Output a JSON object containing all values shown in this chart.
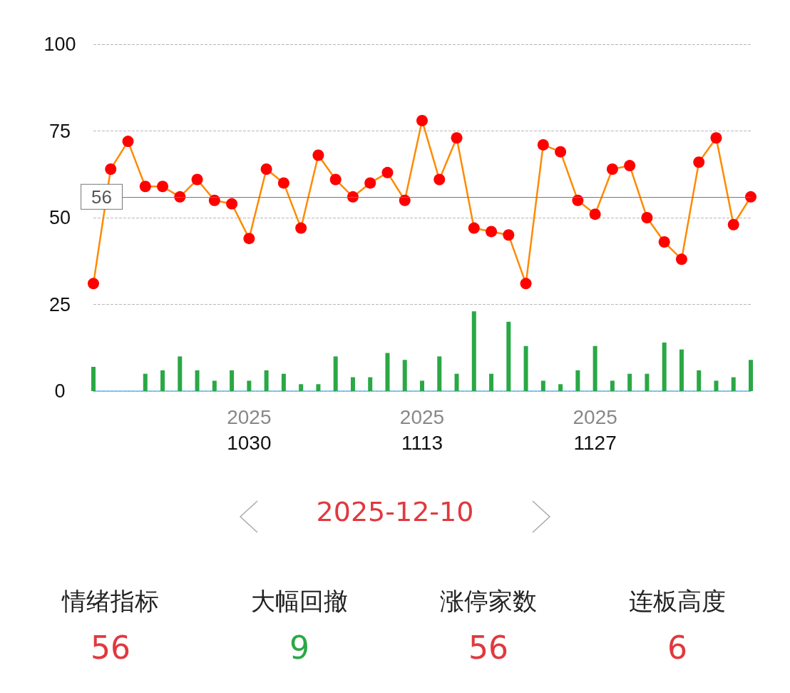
{
  "chart_data": [
    {
      "type": "line",
      "categories": [
        null,
        null,
        null,
        null,
        null,
        null,
        null,
        null,
        null,
        "2025\n1030",
        null,
        null,
        null,
        null,
        null,
        null,
        null,
        null,
        null,
        "2025\n1113",
        null,
        null,
        null,
        null,
        null,
        null,
        null,
        null,
        null,
        "2025\n1127",
        null,
        null,
        null,
        null,
        null,
        null,
        null,
        null,
        null
      ],
      "series": [
        {
          "type": "bar",
          "color": "#2aa845",
          "values": [
            7,
            0,
            0,
            5,
            6,
            10,
            6,
            3,
            6,
            3,
            6,
            5,
            2,
            2,
            10,
            4,
            4,
            11,
            9,
            3,
            10,
            5,
            23,
            5,
            20,
            13,
            3,
            2,
            6,
            13,
            3,
            5,
            5,
            14,
            12,
            6,
            3,
            4,
            9
          ]
        },
        {
          "color": "#ff8a00",
          "values": [
            31,
            64,
            72,
            59,
            59,
            56,
            61,
            55,
            54,
            44,
            64,
            60,
            47,
            68,
            61,
            56,
            60,
            63,
            55,
            78,
            61,
            73,
            47,
            46,
            45,
            31,
            71,
            69,
            55,
            51,
            64,
            65,
            50,
            43,
            38,
            66,
            73,
            48,
            56
          ]
        }
      ],
      "ylim": [
        0,
        100
      ],
      "yticks": [
        0,
        25,
        50,
        75,
        100
      ],
      "grid": "y",
      "marker": "circle",
      "ref_lines": [
        {
          "axis": "y",
          "value": 56,
          "label": "56"
        }
      ]
    },
    {
      "type": "other",
      "title": "2025-12-10",
      "categories": [
        "情绪指标",
        "大幅回撤",
        "涨停家数",
        "连板高度"
      ],
      "values": [
        56,
        9,
        56,
        6
      ],
      "data_labels": true,
      "colors": [
        "#e0393e",
        "#2aa845",
        "#e0393e",
        "#e0393e"
      ]
    }
  ]
}
